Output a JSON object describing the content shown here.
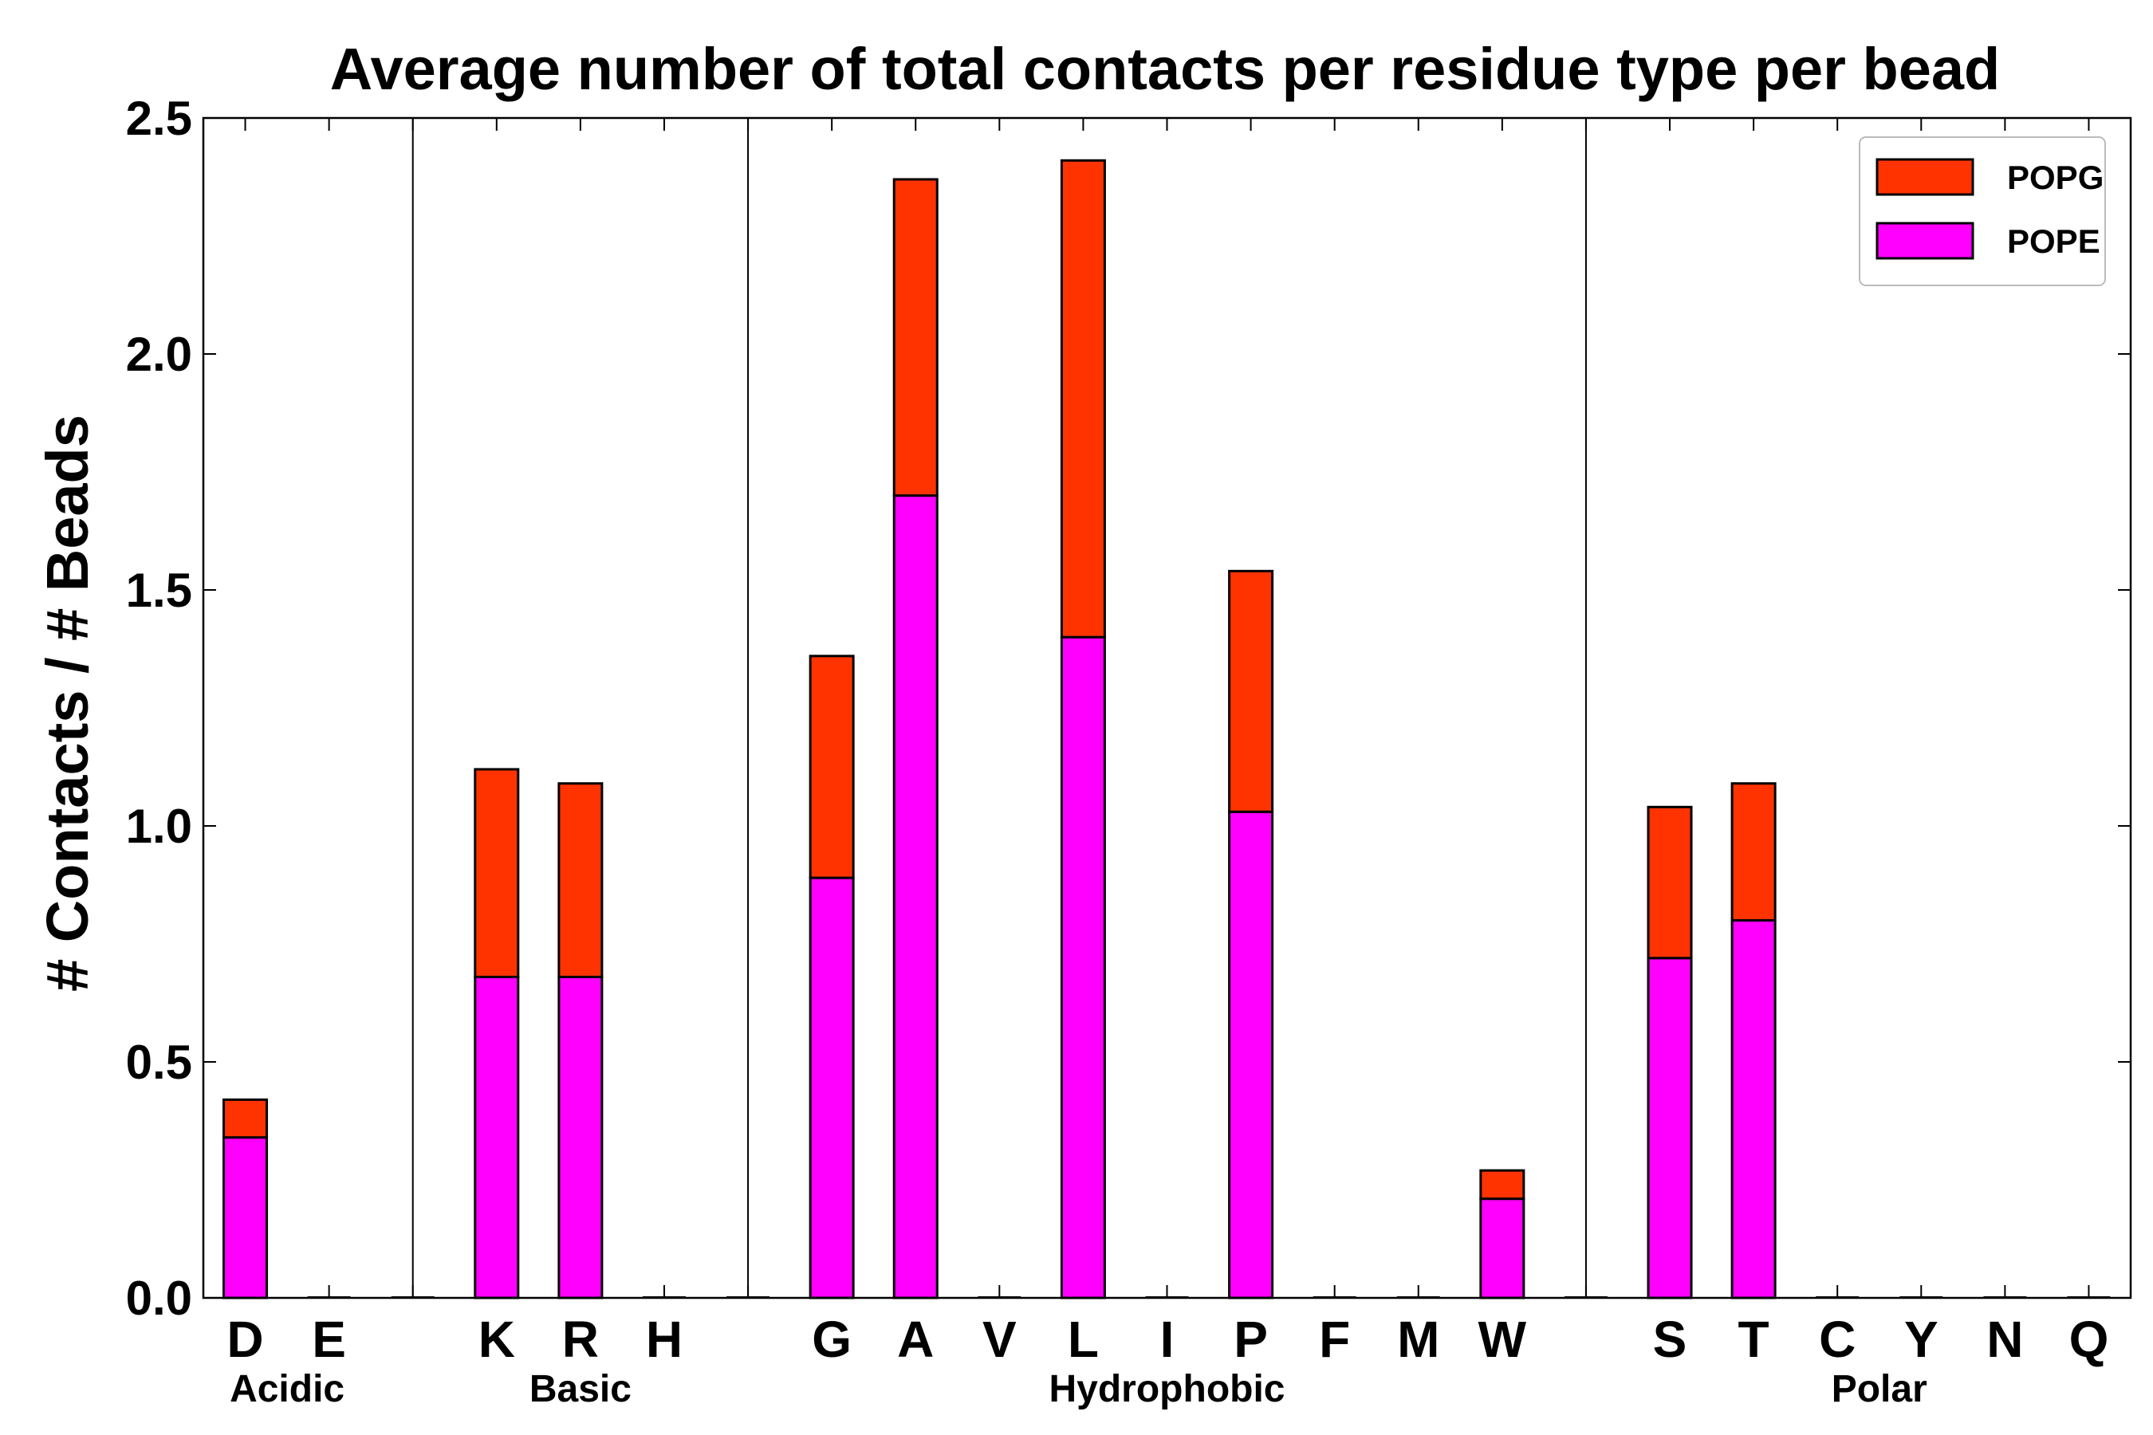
{
  "chart_data": {
    "type": "bar",
    "stacked": true,
    "title": "Average number of total contacts per residue type per bead",
    "xlabel": "",
    "ylabel": "# Contacts / # Beads",
    "ylim": [
      0,
      2.5
    ],
    "yticks": [
      "0.0",
      "0.5",
      "1.0",
      "1.5",
      "2.0",
      "2.5"
    ],
    "categories": [
      "D",
      "E",
      "",
      "K",
      "R",
      "H",
      "",
      "G",
      "A",
      "V",
      "L",
      "I",
      "P",
      "F",
      "M",
      "W",
      "",
      "S",
      "T",
      "C",
      "Y",
      "N",
      "Q"
    ],
    "series": [
      {
        "name": "POPE",
        "color": "#ff00ff",
        "values": [
          0.34,
          0,
          0,
          0.68,
          0.68,
          0,
          0,
          0.89,
          1.7,
          0,
          1.4,
          0,
          1.03,
          0,
          0,
          0.21,
          0,
          0.72,
          0.8,
          0,
          0,
          0,
          0
        ]
      },
      {
        "name": "POPG",
        "color": "#ff3300",
        "values": [
          0.08,
          0,
          0,
          0.44,
          0.41,
          0,
          0,
          0.47,
          0.67,
          0,
          1.01,
          0,
          0.51,
          0,
          0,
          0.06,
          0,
          0.32,
          0.29,
          0,
          0,
          0,
          0
        ]
      }
    ],
    "groups": [
      {
        "label": "Acidic",
        "start": 0,
        "end": 1
      },
      {
        "label": "Basic",
        "start": 3,
        "end": 5
      },
      {
        "label": "Hydrophobic",
        "start": 7,
        "end": 15
      },
      {
        "label": "Polar",
        "start": 17,
        "end": 22
      }
    ],
    "separators_after_index": [
      2,
      6,
      16
    ],
    "legend": {
      "placement": "top-right",
      "entries": [
        "POPG",
        "POPE"
      ]
    }
  }
}
